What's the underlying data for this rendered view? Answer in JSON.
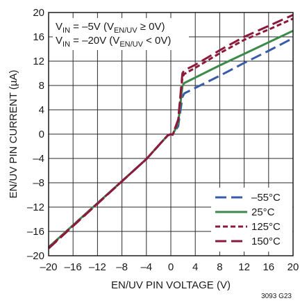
{
  "chart_data": {
    "type": "line",
    "xlabel": "EN/UV PIN VOLTAGE (V)",
    "ylabel": "EN/UV PIN CURRENT (µA)",
    "xlim": [
      -20,
      20
    ],
    "ylim": [
      -20,
      20
    ],
    "xticks": [
      -20,
      -16,
      -12,
      -8,
      -4,
      0,
      4,
      8,
      12,
      16,
      20
    ],
    "yticks": [
      -20,
      -16,
      -12,
      -8,
      -4,
      0,
      4,
      8,
      12,
      16,
      20
    ],
    "xtick_labels": [
      "–20",
      "–16",
      "–12",
      "–8",
      "–4",
      "0",
      "4",
      "8",
      "12",
      "16",
      "20"
    ],
    "ytick_labels": [
      "–20",
      "–16",
      "–12",
      "–8",
      "–4",
      "0",
      "4",
      "8",
      "12",
      "16",
      "20"
    ],
    "grid": true,
    "legend_position": "bottom-right",
    "annotation": {
      "line1": {
        "main": "V",
        "sub": "IN",
        "rest": " = –5V (V",
        "sub2": "EN/UV",
        "tail": " ≥ 0V)"
      },
      "line2": {
        "main": "V",
        "sub": "IN",
        "rest": " = –20V (V",
        "sub2": "EN/UV",
        "tail": " < 0V)"
      }
    },
    "figure_id": "3093 G23",
    "series": [
      {
        "name": "–55°C",
        "color": "#3a5ba8",
        "dash": "dashed-long",
        "x": [
          -20,
          -4,
          -1.5,
          -0.5,
          0,
          0.3,
          1.2,
          1.9,
          2.2,
          4,
          8,
          12,
          16,
          20
        ],
        "y": [
          -18.6,
          -4.1,
          -1.3,
          -0.2,
          0,
          -0.1,
          1.3,
          6.1,
          6.7,
          7.6,
          9.6,
          11.7,
          13.7,
          15.8
        ]
      },
      {
        "name": "25°C",
        "color": "#3b8a4a",
        "dash": "solid",
        "x": [
          -20,
          -4,
          -1.5,
          -0.5,
          0,
          0.3,
          1.2,
          1.9,
          2.2,
          4,
          8,
          12,
          16,
          20
        ],
        "y": [
          -18.6,
          -4.1,
          -1.3,
          -0.2,
          0,
          -0.1,
          1.8,
          7.9,
          8.4,
          9.3,
          11.3,
          13.2,
          15.1,
          17.0
        ]
      },
      {
        "name": "125°C",
        "color": "#8b1a3c",
        "dash": "dashed-short",
        "x": [
          -20,
          -4,
          -1.5,
          -0.5,
          0,
          0.3,
          1.2,
          1.9,
          2.2,
          4,
          8,
          12,
          16,
          20
        ],
        "y": [
          -18.7,
          -4.1,
          -1.3,
          -0.2,
          0,
          -0.1,
          2.2,
          9.4,
          9.9,
          10.9,
          13.3,
          15.5,
          17.2,
          19.0
        ]
      },
      {
        "name": "150°C",
        "color": "#8b1a3c",
        "dash": "dashed-long",
        "x": [
          -20,
          -4,
          -1.5,
          -0.5,
          0,
          0.3,
          1.2,
          1.9,
          2.2,
          4,
          8,
          12,
          16,
          20
        ],
        "y": [
          -18.8,
          -4.1,
          -1.3,
          -0.2,
          0,
          -0.1,
          2.4,
          10.0,
          10.5,
          11.4,
          13.8,
          16.0,
          17.8,
          19.6
        ]
      }
    ]
  }
}
